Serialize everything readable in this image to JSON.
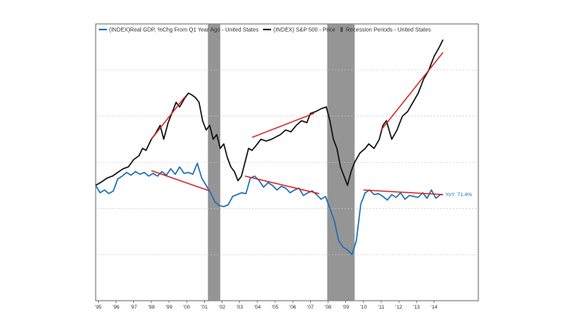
{
  "chart_data": {
    "type": "line",
    "title": "",
    "xlabel": "",
    "ylabel": "",
    "grid": true,
    "legend_position": "top",
    "x_ticks": [
      "'95",
      "'96",
      "'97",
      "'98",
      "'99",
      "'00",
      "'01",
      "'02",
      "'03",
      "'04",
      "'05",
      "'06",
      "'07",
      "'08",
      "'09",
      "'10",
      "'11",
      "'12",
      "'13",
      "'14"
    ],
    "x_range": [
      1994.85,
      2016.5
    ],
    "legend": [
      {
        "label": "(INDEX)Real GDP, %Chg From Q1 Year Ago - United States",
        "color": "#1f6fb5",
        "kind": "line"
      },
      {
        "label": "(INDEX) S&P 500 - Price",
        "color": "#111111",
        "kind": "line"
      },
      {
        "label": "Recession Periods - United States",
        "color": "#888888",
        "kind": "bar"
      }
    ],
    "recessions": [
      [
        2001.2,
        2001.9
      ],
      [
        2007.95,
        2009.5
      ]
    ],
    "end_label": "YoY: 71.4%",
    "colors": {
      "gdp": "#1f6fb5",
      "sp500": "#111111",
      "trend": "#d62020",
      "recession": "#8a8a8a",
      "grid": "#c8c8c8"
    },
    "series": [
      {
        "name": "(INDEX) S&P 500 - Price",
        "x": [
          1994.85,
          1995.2,
          1995.5,
          1995.8,
          1996.1,
          1996.4,
          1996.7,
          1997.0,
          1997.3,
          1997.5,
          1997.7,
          1998.0,
          1998.2,
          1998.5,
          1998.7,
          1998.95,
          1999.2,
          1999.4,
          1999.6,
          1999.9,
          2000.1,
          2000.3,
          2000.5,
          2000.7,
          2000.9,
          2001.1,
          2001.3,
          2001.5,
          2001.7,
          2001.9,
          2002.1,
          2002.3,
          2002.5,
          2002.7,
          2002.9,
          2003.1,
          2003.3,
          2003.5,
          2003.7,
          2004.0,
          2004.2,
          2004.5,
          2004.8,
          2005.0,
          2005.3,
          2005.6,
          2005.9,
          2006.2,
          2006.5,
          2006.8,
          2007.0,
          2007.3,
          2007.6,
          2007.9,
          2008.1,
          2008.3,
          2008.5,
          2008.7,
          2008.9,
          2009.1,
          2009.3,
          2009.5,
          2009.8,
          2010.1,
          2010.3,
          2010.6,
          2010.9,
          2011.1,
          2011.3,
          2011.6,
          2011.9,
          2012.2,
          2012.5,
          2012.8,
          2013.1,
          2013.4,
          2013.7,
          2014.0,
          2014.3,
          2014.5
        ],
        "values": [
          100,
          104,
          108,
          110,
          114,
          118,
          120,
          128,
          132,
          140,
          138,
          150,
          155,
          165,
          150,
          168,
          180,
          190,
          185,
          195,
          200,
          198,
          195,
          190,
          170,
          160,
          165,
          150,
          155,
          140,
          145,
          130,
          120,
          115,
          105,
          110,
          125,
          140,
          138,
          145,
          150,
          148,
          150,
          152,
          155,
          160,
          158,
          165,
          170,
          168,
          178,
          180,
          183,
          185,
          170,
          150,
          140,
          120,
          110,
          100,
          115,
          125,
          135,
          140,
          145,
          140,
          150,
          165,
          170,
          150,
          160,
          175,
          180,
          190,
          200,
          215,
          225,
          240,
          250,
          258
        ]
      },
      {
        "name": "(INDEX)Real GDP, %Chg From Q1 Year Ago - United States",
        "x": [
          1994.85,
          1995.1,
          1995.35,
          1995.6,
          1995.85,
          1996.1,
          1996.35,
          1996.6,
          1996.85,
          1997.1,
          1997.35,
          1997.6,
          1997.85,
          1998.1,
          1998.35,
          1998.6,
          1998.85,
          1999.1,
          1999.35,
          1999.6,
          1999.85,
          2000.1,
          2000.35,
          2000.6,
          2000.85,
          2001.1,
          2001.35,
          2001.6,
          2001.85,
          2002.1,
          2002.35,
          2002.6,
          2002.85,
          2003.1,
          2003.35,
          2003.6,
          2003.85,
          2004.1,
          2004.35,
          2004.6,
          2004.85,
          2005.1,
          2005.35,
          2005.6,
          2005.85,
          2006.1,
          2006.35,
          2006.6,
          2006.85,
          2007.1,
          2007.35,
          2007.6,
          2007.85,
          2008.1,
          2008.35,
          2008.6,
          2008.85,
          2009.1,
          2009.35,
          2009.6,
          2009.85,
          2010.1,
          2010.35,
          2010.6,
          2010.85,
          2011.1,
          2011.35,
          2011.6,
          2011.85,
          2012.1,
          2012.35,
          2012.6,
          2012.85,
          2013.1,
          2013.35,
          2013.6,
          2013.85,
          2014.1,
          2014.35,
          2014.5
        ],
        "values": [
          100,
          92,
          95,
          91,
          94,
          107,
          110,
          114,
          111,
          115,
          112,
          114,
          110,
          113,
          110,
          115,
          111,
          118,
          112,
          120,
          113,
          114,
          112,
          124,
          108,
          100,
          92,
          82,
          78,
          77,
          79,
          88,
          90,
          92,
          91,
          108,
          110,
          105,
          98,
          103,
          100,
          95,
          99,
          97,
          92,
          95,
          97,
          89,
          92,
          94,
          90,
          85,
          88,
          75,
          62,
          40,
          33,
          30,
          25,
          40,
          80,
          92,
          95,
          90,
          91,
          88,
          84,
          90,
          87,
          92,
          85,
          89,
          88,
          87,
          92,
          86,
          95,
          86,
          90,
          90
        ]
      }
    ],
    "trend_lines": [
      {
        "x": [
          1998.0,
          1999.9
        ],
        "values": [
          150,
          196
        ]
      },
      {
        "x": [
          2003.7,
          2007.2
        ],
        "values": [
          152,
          178
        ]
      },
      {
        "x": [
          2011.0,
          2014.5
        ],
        "values": [
          160,
          244
        ]
      },
      {
        "x": [
          1998.0,
          2001.3
        ],
        "values": [
          116,
          94
        ]
      },
      {
        "x": [
          2003.3,
          2007.5
        ],
        "values": [
          110,
          91
        ]
      },
      {
        "x": [
          2010.0,
          2014.5
        ],
        "values": [
          95,
          90
        ]
      }
    ],
    "y_range": [
      -25,
      275
    ]
  }
}
